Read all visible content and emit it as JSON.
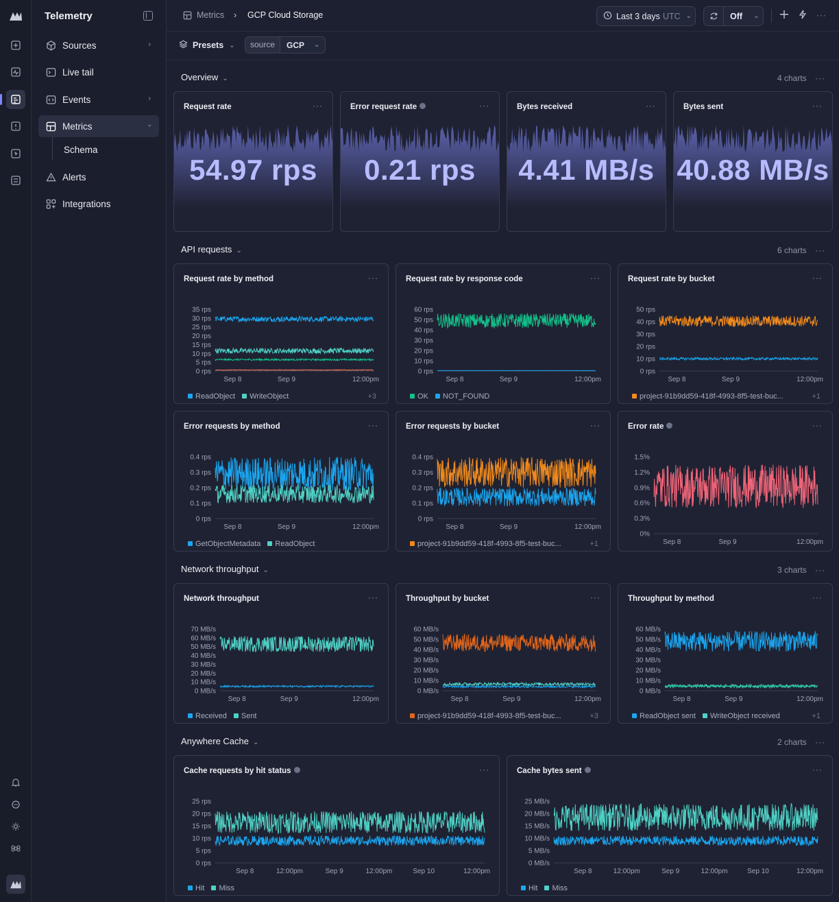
{
  "sidebar": {
    "title": "Telemetry",
    "items": [
      {
        "label": "Sources",
        "icon": "cube-icon"
      },
      {
        "label": "Live tail",
        "icon": "terminal-icon"
      },
      {
        "label": "Events",
        "icon": "code-icon"
      },
      {
        "label": "Metrics",
        "icon": "grid-icon"
      },
      {
        "label": "Schema",
        "icon": ""
      },
      {
        "label": "Alerts",
        "icon": "warning-icon"
      },
      {
        "label": "Integrations",
        "icon": "apps-icon"
      }
    ]
  },
  "header": {
    "breadcrumb": [
      "Metrics",
      "GCP Cloud Storage"
    ],
    "time_range": "Last 3 days",
    "timezone": "UTC",
    "refresh": "Off"
  },
  "filters": {
    "presets_label": "Presets",
    "filter_key": "source",
    "filter_value": "GCP"
  },
  "sections": [
    {
      "title": "Overview",
      "count": "4 charts"
    },
    {
      "title": "API requests",
      "count": "6 charts"
    },
    {
      "title": "Network throughput",
      "count": "3 charts"
    },
    {
      "title": "Anywhere Cache",
      "count": "2 charts"
    }
  ],
  "colors": {
    "blue": "#1aa6f0",
    "teal": "#4fd1c5",
    "green": "#14c08a",
    "orange": "#f08a1c",
    "dark_orange": "#e0661c",
    "coral": "#ff7a5c",
    "pink": "#f06478",
    "stat_purple": "#7076d6"
  },
  "stats": [
    {
      "title": "Request rate",
      "value": "54.97 rps",
      "info": false
    },
    {
      "title": "Error request rate",
      "value": "0.21 rps",
      "info": true
    },
    {
      "title": "Bytes received",
      "value": "4.41 MB/s",
      "info": false
    },
    {
      "title": "Bytes sent",
      "value": "40.88 MB/s",
      "info": false
    }
  ],
  "chart_data": [
    {
      "type": "line",
      "title": "Request rate by method",
      "y_unit": "rps",
      "yticks": [
        "35 rps",
        "30 rps",
        "25 rps",
        "20 rps",
        "15 rps",
        "10 rps",
        "5 rps",
        "0 rps"
      ],
      "ylim": [
        0,
        35
      ],
      "xticks": [
        "Sep 8",
        "Sep 9",
        "12:00pm"
      ],
      "series": [
        {
          "name": "ReadObject",
          "color": "#1aa6f0",
          "values": [
            28,
            31
          ]
        },
        {
          "name": "WriteObject",
          "color": "#4fd1c5",
          "values": [
            10,
            13
          ]
        },
        {
          "color": "#14c08a",
          "values": [
            6,
            7
          ]
        },
        {
          "color": "#ff7a5c",
          "values": [
            0.4,
            0.8
          ]
        }
      ],
      "legend_more": "+3"
    },
    {
      "type": "line",
      "title": "Request rate by response code",
      "y_unit": "rps",
      "yticks": [
        "60 rps",
        "50 rps",
        "40 rps",
        "30 rps",
        "20 rps",
        "10 rps",
        "0 rps"
      ],
      "ylim": [
        0,
        60
      ],
      "xticks": [
        "Sep 8",
        "Sep 9",
        "12:00pm"
      ],
      "series": [
        {
          "name": "OK",
          "color": "#14c08a",
          "values": [
            42,
            56
          ]
        },
        {
          "name": "NOT_FOUND",
          "color": "#1aa6f0",
          "values": [
            0.3,
            0.6
          ]
        }
      ]
    },
    {
      "type": "line",
      "title": "Request rate by bucket",
      "y_unit": "rps",
      "yticks": [
        "50 rps",
        "40 rps",
        "30 rps",
        "20 rps",
        "10 rps",
        "0 rps"
      ],
      "ylim": [
        0,
        50
      ],
      "xticks": [
        "Sep 8",
        "Sep 9",
        "12:00pm"
      ],
      "series": [
        {
          "name": "project-91b9dd59-418f-4993-8f5-test-buc...",
          "color": "#f08a1c",
          "values": [
            36,
            45
          ]
        },
        {
          "color": "#1aa6f0",
          "values": [
            9,
            11
          ]
        }
      ],
      "legend_more": "+1"
    },
    {
      "type": "line",
      "title": "Error requests by method",
      "y_unit": "rps",
      "yticks": [
        "0.4 rps",
        "0.3 rps",
        "0.2 rps",
        "0.1 rps",
        "0 rps"
      ],
      "ylim": [
        0,
        0.4
      ],
      "xticks": [
        "Sep 8",
        "Sep 9",
        "12:00pm"
      ],
      "series": [
        {
          "name": "GetObjectMetadata",
          "color": "#1aa6f0",
          "values": [
            0.18,
            0.4
          ]
        },
        {
          "name": "ReadObject",
          "color": "#4fd1c5",
          "values": [
            0.1,
            0.22
          ]
        }
      ]
    },
    {
      "type": "line",
      "title": "Error requests by bucket",
      "y_unit": "rps",
      "yticks": [
        "0.4 rps",
        "0.3 rps",
        "0.2 rps",
        "0.1 rps",
        "0 rps"
      ],
      "ylim": [
        0,
        0.4
      ],
      "xticks": [
        "Sep 8",
        "Sep 9",
        "12:00pm"
      ],
      "series": [
        {
          "name": "project-91b9dd59-418f-4993-8f5-test-buc...",
          "color": "#f08a1c",
          "values": [
            0.2,
            0.4
          ]
        },
        {
          "color": "#1aa6f0",
          "values": [
            0.08,
            0.2
          ]
        }
      ],
      "legend_more": "+1"
    },
    {
      "type": "line",
      "title": "Error rate",
      "info": true,
      "y_unit": "%",
      "yticks": [
        "1.5%",
        "1.2%",
        "0.9%",
        "0.6%",
        "0.3%",
        "0%"
      ],
      "ylim": [
        0,
        1.5
      ],
      "xticks": [
        "Sep 8",
        "Sep 9",
        "12:00pm"
      ],
      "series": [
        {
          "color": "#f06478",
          "values": [
            0.5,
            1.35
          ]
        }
      ]
    },
    {
      "type": "line",
      "title": "Network throughput",
      "y_unit": "MB/s",
      "yticks": [
        "70 MB/s",
        "60 MB/s",
        "50 MB/s",
        "40 MB/s",
        "30 MB/s",
        "20 MB/s",
        "10 MB/s",
        "0 MB/s"
      ],
      "ylim": [
        0,
        70
      ],
      "xticks": [
        "Sep 8",
        "Sep 9",
        "12:00pm"
      ],
      "series": [
        {
          "name": "Received",
          "color": "#1aa6f0",
          "values": [
            4,
            6
          ]
        },
        {
          "name": "Sent",
          "color": "#4fd1c5",
          "values": [
            44,
            62
          ]
        }
      ]
    },
    {
      "type": "line",
      "title": "Throughput by bucket",
      "y_unit": "MB/s",
      "yticks": [
        "60 MB/s",
        "50 MB/s",
        "40 MB/s",
        "30 MB/s",
        "20 MB/s",
        "10 MB/s",
        "0 MB/s"
      ],
      "ylim": [
        0,
        60
      ],
      "xticks": [
        "Sep 8",
        "Sep 9",
        "12:00pm"
      ],
      "series": [
        {
          "name": "project-91b9dd59-418f-4993-8f5-test-buc...",
          "color": "#e0661c",
          "values": [
            38,
            55
          ]
        },
        {
          "color": "#4fd1c5",
          "values": [
            5,
            8
          ]
        },
        {
          "color": "#1aa6f0",
          "values": [
            3,
            5
          ]
        }
      ],
      "legend_more": "+3"
    },
    {
      "type": "line",
      "title": "Throughput by method",
      "y_unit": "MB/s",
      "yticks": [
        "60 MB/s",
        "50 MB/s",
        "40 MB/s",
        "30 MB/s",
        "20 MB/s",
        "10 MB/s",
        "0 MB/s"
      ],
      "ylim": [
        0,
        60
      ],
      "xticks": [
        "Sep 8",
        "Sep 9",
        "12:00pm"
      ],
      "series": [
        {
          "name": "ReadObject sent",
          "color": "#1aa6f0",
          "values": [
            38,
            58
          ]
        },
        {
          "name": "WriteObject received",
          "color": "#4fd1c5",
          "values": [
            3,
            6
          ]
        },
        {
          "color": "#14c08a",
          "values": [
            4,
            5
          ]
        }
      ],
      "legend_more": "+1"
    },
    {
      "type": "line",
      "title": "Cache requests by hit status",
      "info": true,
      "y_unit": "rps",
      "yticks": [
        "25 rps",
        "20 rps",
        "15 rps",
        "10 rps",
        "5 rps",
        "0 rps"
      ],
      "ylim": [
        0,
        25
      ],
      "xticks": [
        "Sep 8",
        "12:00pm",
        "Sep 9",
        "12:00pm",
        "Sep 10",
        "12:00pm"
      ],
      "series": [
        {
          "name": "Hit",
          "color": "#1aa6f0",
          "values": [
            7,
            11
          ]
        },
        {
          "name": "Miss",
          "color": "#4fd1c5",
          "values": [
            12,
            21
          ]
        }
      ]
    },
    {
      "type": "line",
      "title": "Cache bytes sent",
      "info": true,
      "y_unit": "MB/s",
      "yticks": [
        "25 MB/s",
        "20 MB/s",
        "15 MB/s",
        "10 MB/s",
        "5 MB/s",
        "0 MB/s"
      ],
      "ylim": [
        0,
        25
      ],
      "xticks": [
        "Sep 8",
        "12:00pm",
        "Sep 9",
        "12:00pm",
        "Sep 10",
        "12:00pm"
      ],
      "series": [
        {
          "name": "Hit",
          "color": "#1aa6f0",
          "values": [
            7,
            11
          ]
        },
        {
          "name": "Miss",
          "color": "#4fd1c5",
          "values": [
            13,
            24
          ]
        }
      ]
    }
  ]
}
